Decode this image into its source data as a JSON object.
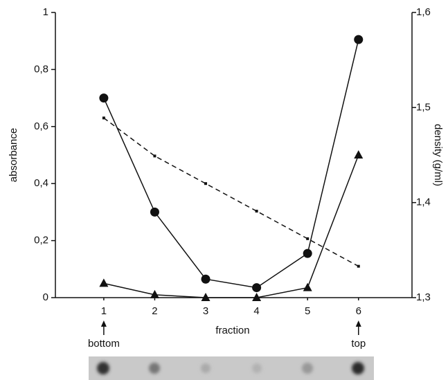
{
  "chart_data": {
    "type": "line",
    "x_label": "fraction",
    "y_label": "absorbance",
    "y2_label": "density (g/ml)",
    "x": [
      1,
      2,
      3,
      4,
      5,
      6
    ],
    "xlim": [
      0.05,
      7.05
    ],
    "xticks": [
      1,
      2,
      3,
      4,
      5,
      6
    ],
    "ylim": [
      0,
      1
    ],
    "yticks": [
      0,
      {
        "value": 0.2,
        "label": "0,2"
      },
      {
        "value": 0.4,
        "label": "0,4"
      },
      {
        "value": 0.6,
        "label": "0,6"
      },
      {
        "value": 0.8,
        "label": "0,8"
      },
      1
    ],
    "y2lim": [
      1.3,
      1.6
    ],
    "y2ticks": [
      {
        "value": 1.3,
        "label": "1,3"
      },
      {
        "value": 1.4,
        "label": "1,4"
      },
      {
        "value": 1.5,
        "label": "1,5"
      },
      {
        "value": 1.6,
        "label": "1,6"
      }
    ],
    "series": [
      {
        "color": "#111111",
        "marker": "circle",
        "dashed": false,
        "values": [
          0.7,
          0.3,
          0.065,
          0.035,
          0.155,
          0.905
        ]
      },
      {
        "color": "#111111",
        "marker": "triangle",
        "dashed": false,
        "values": [
          0.05,
          0.01,
          0.0,
          0.0,
          0.035,
          0.5
        ]
      },
      {
        "color": "#111111",
        "marker": "dot",
        "dashed": true,
        "axis": "y2",
        "values": [
          1.489,
          1.449,
          1.42,
          1.391,
          1.362,
          1.333
        ]
      }
    ],
    "annotations": [
      "bottom",
      "top"
    ]
  }
}
